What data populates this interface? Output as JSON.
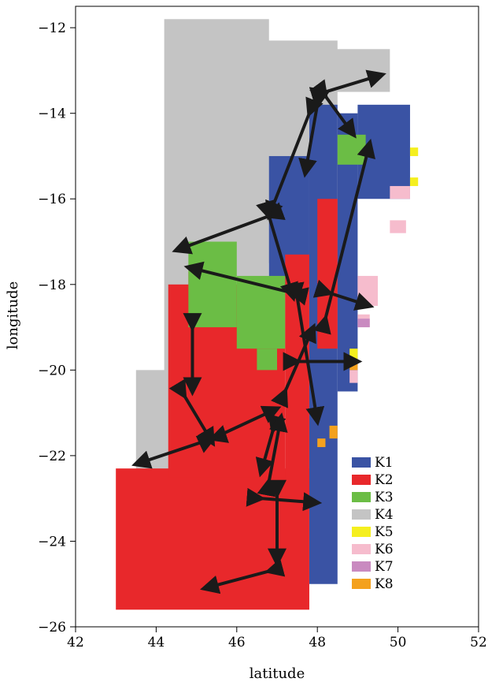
{
  "chart_data": {
    "type": "heatmap",
    "title": "",
    "xlabel": "latitude",
    "ylabel": "longitude",
    "xlim": [
      42,
      52
    ],
    "ylim": [
      -26,
      -11.5
    ],
    "x_ticks": [
      "42",
      "44",
      "46",
      "48",
      "50",
      "52"
    ],
    "y_ticks": [
      "-12",
      "-14",
      "-16",
      "-18",
      "-20",
      "-22",
      "-24",
      "-26"
    ],
    "legend_position": "bottom-right",
    "legend": [
      {
        "label": "K1",
        "color": "#3a53a4"
      },
      {
        "label": "K2",
        "color": "#e8282b"
      },
      {
        "label": "K3",
        "color": "#6bbd45"
      },
      {
        "label": "K4",
        "color": "#c4c4c4"
      },
      {
        "label": "K5",
        "color": "#f5ef1f"
      },
      {
        "label": "K6",
        "color": "#f6bccd"
      },
      {
        "label": "K7",
        "color": "#c98ac0"
      },
      {
        "label": "K8",
        "color": "#f4a11d"
      }
    ],
    "cell_size_deg": 0.25,
    "cells": [
      {
        "k": "K4",
        "rects": [
          [
            44.2,
            -22.5,
            46.8,
            -11.8
          ],
          [
            43.5,
            -23.0,
            44.8,
            -20.0
          ],
          [
            46.5,
            -17.5,
            48.5,
            -12.3
          ],
          [
            48.0,
            -13.5,
            49.8,
            -12.5
          ],
          [
            44.8,
            -18.2,
            45.8,
            -16.5
          ]
        ]
      },
      {
        "k": "K1",
        "rects": [
          [
            47.8,
            -25.0,
            48.5,
            -13.8
          ],
          [
            48.5,
            -20.5,
            49.0,
            -14.0
          ],
          [
            49.0,
            -16.0,
            50.3,
            -13.8
          ],
          [
            46.8,
            -18.0,
            47.8,
            -15.0
          ],
          [
            45.8,
            -20.0,
            46.8,
            -19.0
          ]
        ]
      },
      {
        "k": "K2",
        "rects": [
          [
            43.0,
            -25.6,
            47.8,
            -22.3
          ],
          [
            44.3,
            -22.5,
            47.2,
            -18.0
          ],
          [
            47.2,
            -23.0,
            47.8,
            -17.3
          ],
          [
            48.0,
            -19.5,
            48.5,
            -16.0
          ],
          [
            44.8,
            -19.0,
            45.5,
            -17.7
          ]
        ]
      },
      {
        "k": "K3",
        "rects": [
          [
            44.8,
            -19.0,
            46.0,
            -17.0
          ],
          [
            46.0,
            -19.5,
            47.2,
            -17.8
          ],
          [
            48.5,
            -15.2,
            49.2,
            -14.5
          ],
          [
            46.5,
            -20.0,
            47.0,
            -19.5
          ]
        ]
      },
      {
        "k": "K5",
        "rects": [
          [
            50.3,
            -15.0,
            50.5,
            -14.8
          ],
          [
            50.3,
            -15.7,
            50.5,
            -15.5
          ],
          [
            48.8,
            -19.8,
            49.0,
            -19.5
          ]
        ]
      },
      {
        "k": "K6",
        "rects": [
          [
            49.8,
            -16.0,
            50.3,
            -15.7
          ],
          [
            49.8,
            -16.8,
            50.2,
            -16.5
          ],
          [
            49.0,
            -18.5,
            49.5,
            -17.8
          ],
          [
            49.0,
            -19.0,
            49.3,
            -18.7
          ],
          [
            48.8,
            -20.3,
            49.0,
            -20.0
          ]
        ]
      },
      {
        "k": "K7",
        "rects": [
          [
            49.0,
            -19.0,
            49.3,
            -18.8
          ]
        ]
      },
      {
        "k": "K8",
        "rects": [
          [
            48.8,
            -20.0,
            49.0,
            -19.8
          ],
          [
            48.3,
            -21.6,
            48.5,
            -21.3
          ],
          [
            48.0,
            -21.8,
            48.2,
            -21.6
          ]
        ]
      }
    ],
    "arrows": [
      [
        [
          48.2,
          -13.5
        ],
        [
          49.6,
          -13.1
        ]
      ],
      [
        [
          48.2,
          -13.6
        ],
        [
          48.9,
          -14.5
        ]
      ],
      [
        [
          48.0,
          -13.8
        ],
        [
          47.7,
          -15.4
        ]
      ],
      [
        [
          47.8,
          -14.0
        ],
        [
          46.8,
          -16.4
        ]
      ],
      [
        [
          46.8,
          -16.4
        ],
        [
          44.5,
          -17.2
        ]
      ],
      [
        [
          46.8,
          -16.4
        ],
        [
          47.4,
          -18.3
        ]
      ],
      [
        [
          47.4,
          -18.2
        ],
        [
          44.8,
          -17.6
        ]
      ],
      [
        [
          47.5,
          -18.3
        ],
        [
          48.0,
          -21.2
        ]
      ],
      [
        [
          48.2,
          -18.8
        ],
        [
          49.3,
          -14.7
        ]
      ],
      [
        [
          48.3,
          -18.2
        ],
        [
          49.3,
          -18.5
        ]
      ],
      [
        [
          47.5,
          -19.8
        ],
        [
          49.0,
          -19.8
        ]
      ],
      [
        [
          47.2,
          -20.5
        ],
        [
          47.9,
          -19.0
        ]
      ],
      [
        [
          44.9,
          -19.0
        ],
        [
          44.9,
          -20.5
        ]
      ],
      [
        [
          44.7,
          -20.6
        ],
        [
          45.4,
          -21.7
        ]
      ],
      [
        [
          45.4,
          -21.6
        ],
        [
          43.5,
          -22.2
        ]
      ],
      [
        [
          45.4,
          -21.6
        ],
        [
          47.0,
          -20.9
        ]
      ],
      [
        [
          46.9,
          -21.4
        ],
        [
          46.6,
          -22.4
        ]
      ],
      [
        [
          46.8,
          -22.6
        ],
        [
          47.1,
          -21.1
        ]
      ],
      [
        [
          46.6,
          -23.0
        ],
        [
          48.0,
          -23.1
        ]
      ],
      [
        [
          47.0,
          -22.9
        ],
        [
          47.0,
          -24.5
        ]
      ],
      [
        [
          46.8,
          -24.7
        ],
        [
          45.2,
          -25.1
        ]
      ]
    ]
  }
}
